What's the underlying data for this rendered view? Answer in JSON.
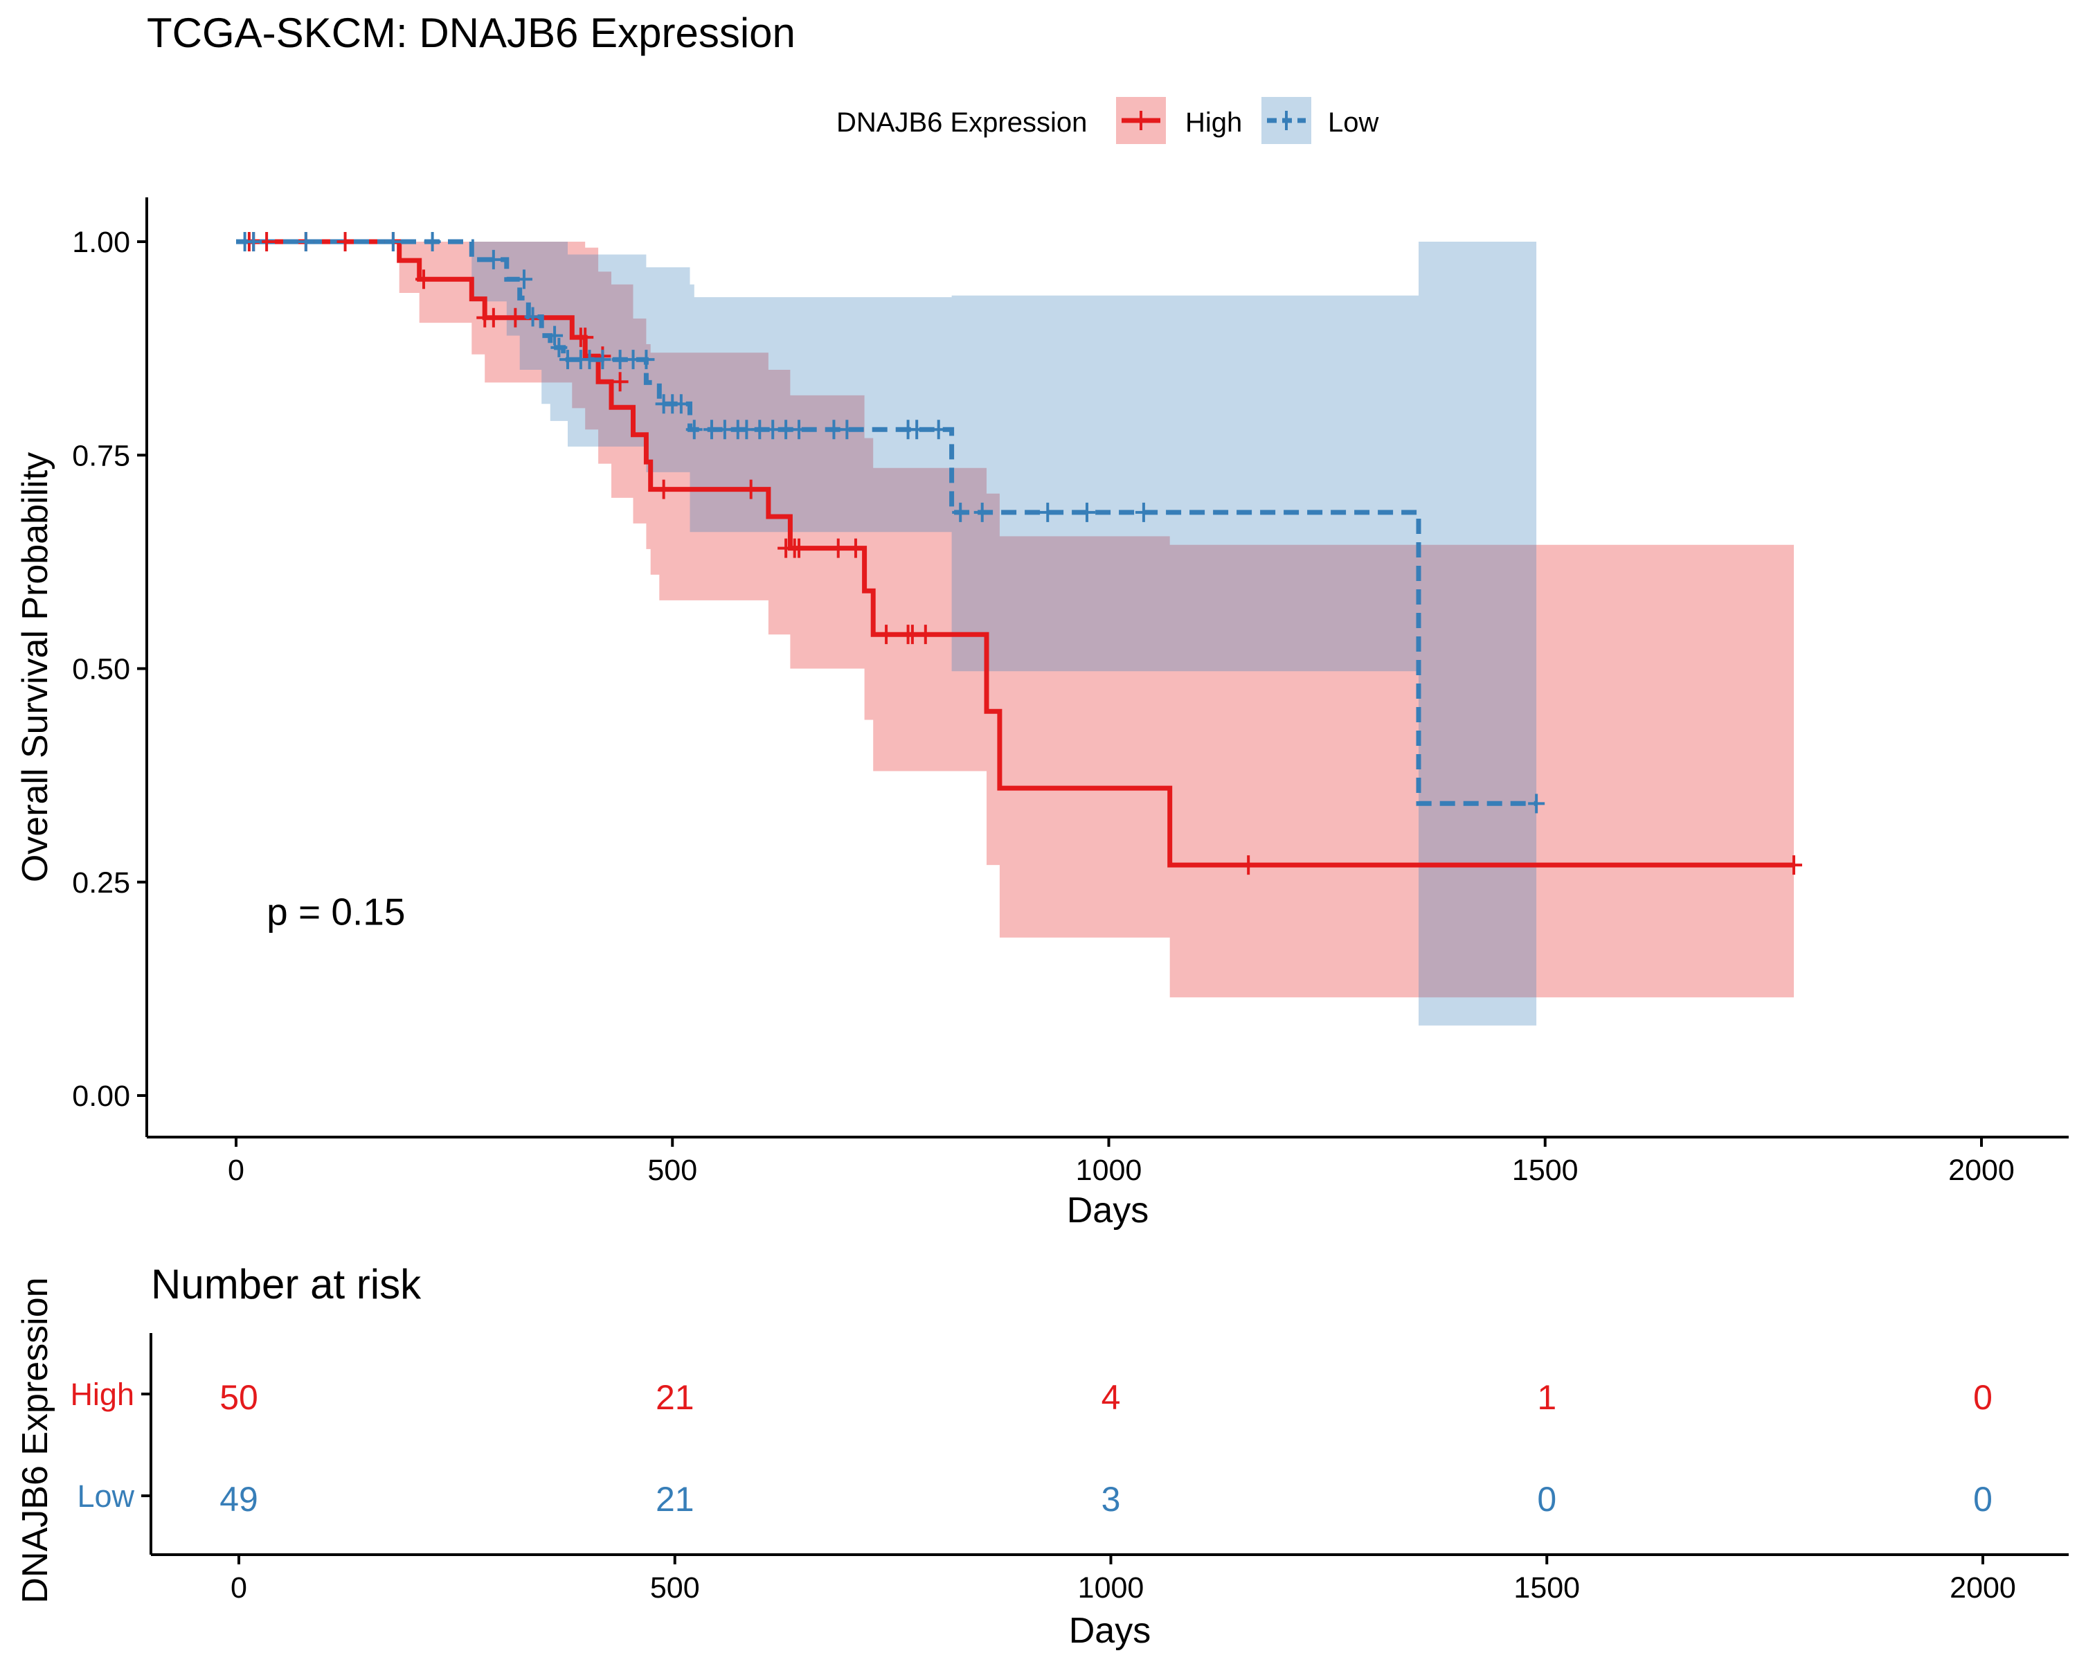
{
  "chart_data": [
    {
      "type": "line",
      "subtype": "kaplan-meier",
      "title": "TCGA-SKCM: DNAJB6 Expression",
      "xlabel": "Days",
      "ylabel": "Overall Survival Probability",
      "xlim": [
        0,
        2000
      ],
      "ylim": [
        0,
        1
      ],
      "xticks": [
        0,
        500,
        1000,
        1500,
        2000
      ],
      "yticks": [
        0.0,
        0.25,
        0.5,
        0.75,
        1.0
      ],
      "xtick_labels": [
        "0",
        "500",
        "1000",
        "1500",
        "2000"
      ],
      "ytick_labels": [
        "0.00",
        "0.25",
        "0.50",
        "0.75",
        "1.00"
      ],
      "grid": false,
      "legend": {
        "title": "DNAJB6 Expression",
        "placement": "top",
        "entries": [
          "High",
          "Low"
        ]
      },
      "annotation": "p = 0.15",
      "annotation_at": {
        "x": 35,
        "y": 0.2
      },
      "series": [
        {
          "name": "High",
          "color": "#E41A1C",
          "line_style": "solid",
          "steps": [
            [
              0,
              1.0
            ],
            [
              187,
              0.978
            ],
            [
              210,
              0.956
            ],
            [
              270,
              0.933
            ],
            [
              285,
              0.911
            ],
            [
              370,
              0.911
            ],
            [
              385,
              0.888
            ],
            [
              400,
              0.866
            ],
            [
              415,
              0.836
            ],
            [
              430,
              0.806
            ],
            [
              455,
              0.774
            ],
            [
              470,
              0.742
            ],
            [
              475,
              0.71
            ],
            [
              610,
              0.678
            ],
            [
              635,
              0.641
            ],
            [
              720,
              0.591
            ],
            [
              730,
              0.54
            ],
            [
              860,
              0.45
            ],
            [
              875,
              0.36
            ],
            [
              1070,
              0.27
            ],
            [
              1785,
              0.27
            ]
          ],
          "ci_steps": [
            [
              0,
              1.0,
              1.0
            ],
            [
              187,
              1.0,
              0.94
            ],
            [
              210,
              1.0,
              0.905
            ],
            [
              270,
              1.0,
              0.868
            ],
            [
              285,
              1.0,
              0.835
            ],
            [
              370,
              1.0,
              0.835
            ],
            [
              385,
              1.0,
              0.805
            ],
            [
              400,
              0.993,
              0.78
            ],
            [
              415,
              0.965,
              0.74
            ],
            [
              430,
              0.95,
              0.7
            ],
            [
              455,
              0.91,
              0.67
            ],
            [
              470,
              0.88,
              0.64
            ],
            [
              475,
              0.87,
              0.61
            ],
            [
              485,
              0.87,
              0.58
            ],
            [
              610,
              0.85,
              0.54
            ],
            [
              635,
              0.82,
              0.5
            ],
            [
              720,
              0.77,
              0.44
            ],
            [
              730,
              0.735,
              0.38
            ],
            [
              860,
              0.705,
              0.27
            ],
            [
              875,
              0.655,
              0.185
            ],
            [
              1070,
              0.645,
              0.115
            ],
            [
              1785,
              0.645,
              0.115
            ]
          ],
          "censored": [
            [
              15,
              1.0
            ],
            [
              20,
              1.0
            ],
            [
              35,
              1.0
            ],
            [
              80,
              1.0
            ],
            [
              125,
              1.0
            ],
            [
              180,
              1.0
            ],
            [
              215,
              0.956
            ],
            [
              285,
              0.911
            ],
            [
              295,
              0.911
            ],
            [
              320,
              0.911
            ],
            [
              395,
              0.888
            ],
            [
              400,
              0.888
            ],
            [
              420,
              0.866
            ],
            [
              440,
              0.836
            ],
            [
              490,
              0.71
            ],
            [
              590,
              0.71
            ],
            [
              630,
              0.641
            ],
            [
              640,
              0.641
            ],
            [
              645,
              0.641
            ],
            [
              690,
              0.641
            ],
            [
              710,
              0.641
            ],
            [
              745,
              0.54
            ],
            [
              770,
              0.54
            ],
            [
              775,
              0.54
            ],
            [
              790,
              0.54
            ],
            [
              1160,
              0.27
            ],
            [
              1785,
              0.27
            ]
          ]
        },
        {
          "name": "Low",
          "color": "#377EB8",
          "line_style": "dashed",
          "steps": [
            [
              0,
              1.0
            ],
            [
              270,
              0.979
            ],
            [
              310,
              0.956
            ],
            [
              325,
              0.934
            ],
            [
              335,
              0.912
            ],
            [
              350,
              0.89
            ],
            [
              360,
              0.876
            ],
            [
              375,
              0.862
            ],
            [
              470,
              0.835
            ],
            [
              485,
              0.81
            ],
            [
              520,
              0.78
            ],
            [
              820,
              0.683
            ],
            [
              1355,
              0.342
            ],
            [
              1490,
              0.342
            ]
          ],
          "ci_steps": [
            [
              0,
              1.0,
              1.0
            ],
            [
              270,
              1.0,
              0.93
            ],
            [
              310,
              1.0,
              0.89
            ],
            [
              325,
              1.0,
              0.85
            ],
            [
              350,
              1.0,
              0.81
            ],
            [
              360,
              1.0,
              0.79
            ],
            [
              380,
              0.985,
              0.76
            ],
            [
              400,
              0.985,
              0.76
            ],
            [
              470,
              0.97,
              0.73
            ],
            [
              520,
              0.95,
              0.66
            ],
            [
              525,
              0.935,
              0.66
            ],
            [
              820,
              0.937,
              0.497
            ],
            [
              1355,
              1.0,
              0.082
            ],
            [
              1490,
              1.0,
              0.082
            ]
          ],
          "censored": [
            [
              10,
              1.0
            ],
            [
              20,
              1.0
            ],
            [
              80,
              1.0
            ],
            [
              180,
              1.0
            ],
            [
              225,
              1.0
            ],
            [
              295,
              0.979
            ],
            [
              330,
              0.956
            ],
            [
              340,
              0.912
            ],
            [
              365,
              0.89
            ],
            [
              370,
              0.876
            ],
            [
              380,
              0.862
            ],
            [
              395,
              0.862
            ],
            [
              405,
              0.862
            ],
            [
              420,
              0.862
            ],
            [
              440,
              0.862
            ],
            [
              455,
              0.862
            ],
            [
              470,
              0.862
            ],
            [
              490,
              0.81
            ],
            [
              500,
              0.81
            ],
            [
              510,
              0.81
            ],
            [
              525,
              0.78
            ],
            [
              545,
              0.78
            ],
            [
              560,
              0.78
            ],
            [
              575,
              0.78
            ],
            [
              585,
              0.78
            ],
            [
              600,
              0.78
            ],
            [
              615,
              0.78
            ],
            [
              630,
              0.78
            ],
            [
              645,
              0.78
            ],
            [
              685,
              0.78
            ],
            [
              700,
              0.78
            ],
            [
              770,
              0.78
            ],
            [
              780,
              0.78
            ],
            [
              805,
              0.78
            ],
            [
              830,
              0.683
            ],
            [
              855,
              0.683
            ],
            [
              930,
              0.683
            ],
            [
              975,
              0.683
            ],
            [
              1040,
              0.683
            ],
            [
              1490,
              0.342
            ]
          ]
        }
      ]
    },
    {
      "type": "table",
      "title": "Number at risk",
      "xlabel": "Days",
      "ylabel": "DNAJB6 Expression",
      "xlim": [
        0,
        2000
      ],
      "xticks": [
        0,
        500,
        1000,
        1500,
        2000
      ],
      "xtick_labels": [
        "0",
        "500",
        "1000",
        "1500",
        "2000"
      ],
      "rows": [
        {
          "name": "High",
          "color": "#E41A1C",
          "values": [
            "50",
            "21",
            "4",
            "1",
            "0"
          ]
        },
        {
          "name": "Low",
          "color": "#377EB8",
          "values": [
            "49",
            "21",
            "3",
            "0",
            "0"
          ]
        }
      ]
    }
  ]
}
